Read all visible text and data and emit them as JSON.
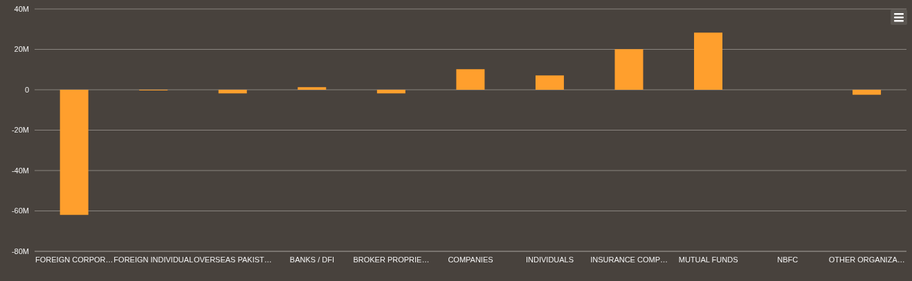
{
  "chart_data": {
    "type": "bar",
    "categories": [
      "FOREIGN CORPOR…",
      "FOREIGN INDIVIDUAL",
      "OVERSEAS PAKIST…",
      "BANKS / DFI",
      "BROKER PROPRIE…",
      "COMPANIES",
      "INDIVIDUALS",
      "INSURANCE COMP…",
      "MUTUAL FUNDS",
      "NBFC",
      "OTHER ORGANIZA…"
    ],
    "series": [
      {
        "color": "#ff9f2d",
        "values": [
          -62,
          -0.3,
          -1.8,
          1.3,
          -1.8,
          10.2,
          7.1,
          20.1,
          28.3,
          0,
          -2.5
        ]
      }
    ],
    "ylim": [
      -80,
      40
    ],
    "yticks": [
      {
        "value": -80,
        "label": "-80M"
      },
      {
        "value": -60,
        "label": "-60M"
      },
      {
        "value": -40,
        "label": "-40M"
      },
      {
        "value": -20,
        "label": "-20M"
      },
      0,
      {
        "value": 20,
        "label": "20M"
      },
      {
        "value": 40,
        "label": "40M"
      }
    ],
    "grid": "y",
    "legend": false
  }
}
